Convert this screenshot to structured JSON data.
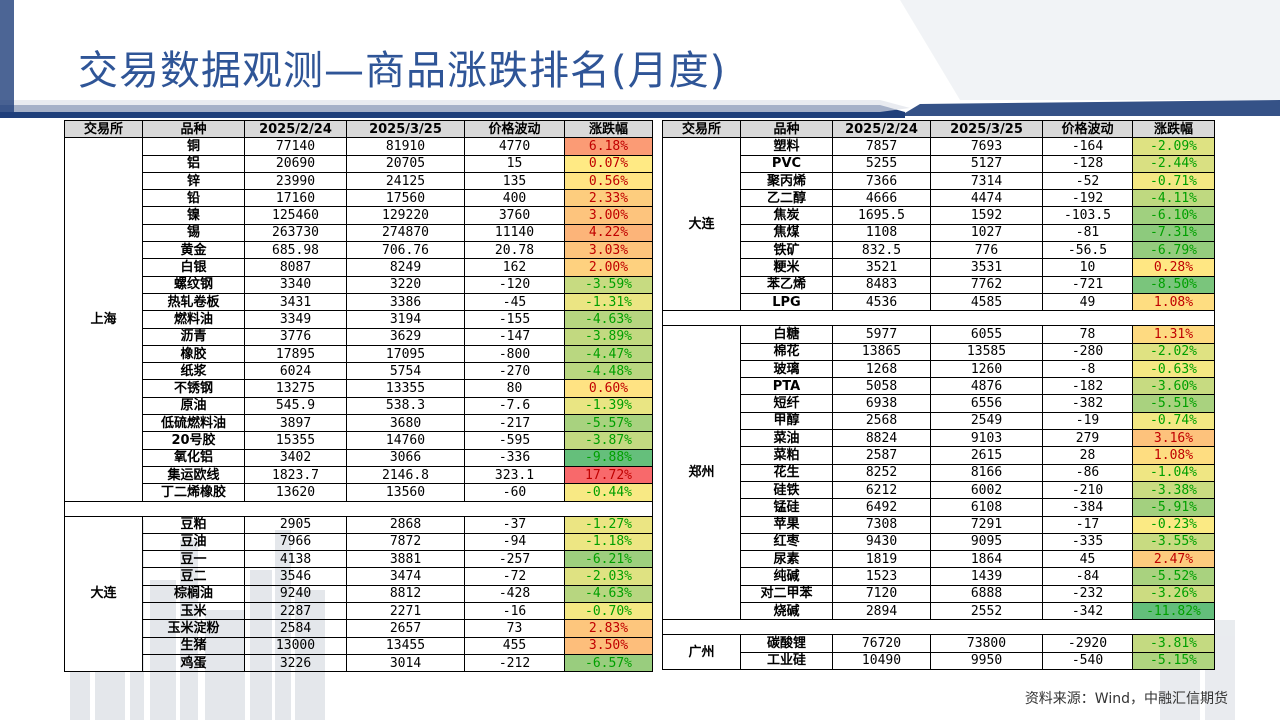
{
  "title": "交易数据观测—商品涨跌排名(月度)",
  "headers": [
    "交易所",
    "品种",
    "2025/2/24",
    "2025/3/25",
    "价格波动",
    "涨跌幅"
  ],
  "footnote": "资料来源：Wind，中融汇信期货",
  "colors": {
    "title": "#2f5597",
    "up_max": "#f8696b",
    "down_max": "#63be7b",
    "mid": "#ffeb84"
  },
  "left_groups": [
    {
      "exchange": "上海",
      "rows": [
        [
          "铜",
          "77140",
          "81910",
          "4770",
          "6.18%"
        ],
        [
          "铝",
          "20690",
          "20705",
          "15",
          "0.07%"
        ],
        [
          "锌",
          "23990",
          "24125",
          "135",
          "0.56%"
        ],
        [
          "铅",
          "17160",
          "17560",
          "400",
          "2.33%"
        ],
        [
          "镍",
          "125460",
          "129220",
          "3760",
          "3.00%"
        ],
        [
          "锡",
          "263730",
          "274870",
          "11140",
          "4.22%"
        ],
        [
          "黄金",
          "685.98",
          "706.76",
          "20.78",
          "3.03%"
        ],
        [
          "白银",
          "8087",
          "8249",
          "162",
          "2.00%"
        ],
        [
          "螺纹钢",
          "3340",
          "3220",
          "-120",
          "-3.59%"
        ],
        [
          "热轧卷板",
          "3431",
          "3386",
          "-45",
          "-1.31%"
        ],
        [
          "燃料油",
          "3349",
          "3194",
          "-155",
          "-4.63%"
        ],
        [
          "沥青",
          "3776",
          "3629",
          "-147",
          "-3.89%"
        ],
        [
          "橡胶",
          "17895",
          "17095",
          "-800",
          "-4.47%"
        ],
        [
          "纸浆",
          "6024",
          "5754",
          "-270",
          "-4.48%"
        ],
        [
          "不锈钢",
          "13275",
          "13355",
          "80",
          "0.60%"
        ],
        [
          "原油",
          "545.9",
          "538.3",
          "-7.6",
          "-1.39%"
        ],
        [
          "低硫燃料油",
          "3897",
          "3680",
          "-217",
          "-5.57%"
        ],
        [
          "20号胶",
          "15355",
          "14760",
          "-595",
          "-3.87%"
        ],
        [
          "氧化铝",
          "3402",
          "3066",
          "-336",
          "-9.88%"
        ],
        [
          "集运欧线",
          "1823.7",
          "2146.8",
          "323.1",
          "17.72%"
        ],
        [
          "丁二烯橡胶",
          "13620",
          "13560",
          "-60",
          "-0.44%"
        ]
      ]
    },
    {
      "exchange": "大连",
      "rows": [
        [
          "豆粕",
          "2905",
          "2868",
          "-37",
          "-1.27%"
        ],
        [
          "豆油",
          "7966",
          "7872",
          "-94",
          "-1.18%"
        ],
        [
          "豆一",
          "4138",
          "3881",
          "-257",
          "-6.21%"
        ],
        [
          "豆二",
          "3546",
          "3474",
          "-72",
          "-2.03%"
        ],
        [
          "棕榈油",
          "9240",
          "8812",
          "-428",
          "-4.63%"
        ],
        [
          "玉米",
          "2287",
          "2271",
          "-16",
          "-0.70%"
        ],
        [
          "玉米淀粉",
          "2584",
          "2657",
          "73",
          "2.83%"
        ],
        [
          "生猪",
          "13000",
          "13455",
          "455",
          "3.50%"
        ],
        [
          "鸡蛋",
          "3226",
          "3014",
          "-212",
          "-6.57%"
        ]
      ]
    }
  ],
  "right_groups": [
    {
      "exchange": "大连",
      "rows": [
        [
          "塑料",
          "7857",
          "7693",
          "-164",
          "-2.09%"
        ],
        [
          "PVC",
          "5255",
          "5127",
          "-128",
          "-2.44%"
        ],
        [
          "聚丙烯",
          "7366",
          "7314",
          "-52",
          "-0.71%"
        ],
        [
          "乙二醇",
          "4666",
          "4474",
          "-192",
          "-4.11%"
        ],
        [
          "焦炭",
          "1695.5",
          "1592",
          "-103.5",
          "-6.10%"
        ],
        [
          "焦煤",
          "1108",
          "1027",
          "-81",
          "-7.31%"
        ],
        [
          "铁矿",
          "832.5",
          "776",
          "-56.5",
          "-6.79%"
        ],
        [
          "粳米",
          "3521",
          "3531",
          "10",
          "0.28%"
        ],
        [
          "苯乙烯",
          "8483",
          "7762",
          "-721",
          "-8.50%"
        ],
        [
          "LPG",
          "4536",
          "4585",
          "49",
          "1.08%"
        ]
      ]
    },
    {
      "exchange": "郑州",
      "rows": [
        [
          "白糖",
          "5977",
          "6055",
          "78",
          "1.31%"
        ],
        [
          "棉花",
          "13865",
          "13585",
          "-280",
          "-2.02%"
        ],
        [
          "玻璃",
          "1268",
          "1260",
          "-8",
          "-0.63%"
        ],
        [
          "PTA",
          "5058",
          "4876",
          "-182",
          "-3.60%"
        ],
        [
          "短纤",
          "6938",
          "6556",
          "-382",
          "-5.51%"
        ],
        [
          "甲醇",
          "2568",
          "2549",
          "-19",
          "-0.74%"
        ],
        [
          "菜油",
          "8824",
          "9103",
          "279",
          "3.16%"
        ],
        [
          "菜粕",
          "2587",
          "2615",
          "28",
          "1.08%"
        ],
        [
          "花生",
          "8252",
          "8166",
          "-86",
          "-1.04%"
        ],
        [
          "硅铁",
          "6212",
          "6002",
          "-210",
          "-3.38%"
        ],
        [
          "锰硅",
          "6492",
          "6108",
          "-384",
          "-5.91%"
        ],
        [
          "苹果",
          "7308",
          "7291",
          "-17",
          "-0.23%"
        ],
        [
          "红枣",
          "9430",
          "9095",
          "-335",
          "-3.55%"
        ],
        [
          "尿素",
          "1819",
          "1864",
          "45",
          "2.47%"
        ],
        [
          "纯碱",
          "1523",
          "1439",
          "-84",
          "-5.52%"
        ],
        [
          "对二甲苯",
          "7120",
          "6888",
          "-232",
          "-3.26%"
        ],
        [
          "烧碱",
          "2894",
          "2552",
          "-342",
          "-11.82%"
        ]
      ]
    },
    {
      "exchange": "广州",
      "rows": [
        [
          "碳酸锂",
          "76720",
          "73800",
          "-2920",
          "-3.81%"
        ],
        [
          "工业硅",
          "10490",
          "9950",
          "-540",
          "-5.15%"
        ]
      ]
    }
  ]
}
